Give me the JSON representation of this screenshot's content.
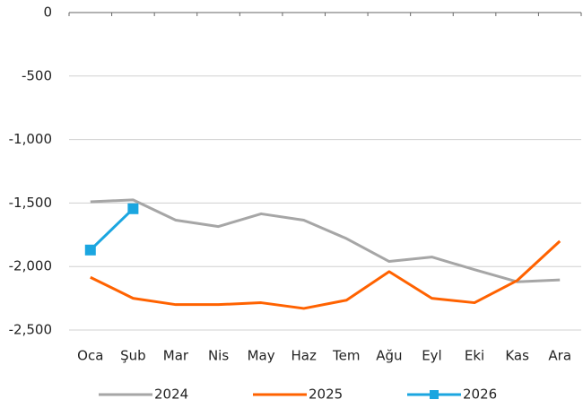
{
  "chart_data": {
    "type": "line",
    "categories": [
      "Oca",
      "Şub",
      "Mar",
      "Nis",
      "May",
      "Haz",
      "Tem",
      "Ağu",
      "Eyl",
      "Eki",
      "Kas",
      "Ara"
    ],
    "series": [
      {
        "name": "2024",
        "color": "#a6a6a6",
        "values": [
          -1490,
          -1475,
          -1635,
          -1685,
          -1585,
          -1635,
          -1780,
          -1960,
          -1925,
          -2025,
          -2120,
          -2105
        ]
      },
      {
        "name": "2025",
        "color": "#ff6200",
        "values": [
          -2085,
          -2250,
          -2300,
          -2300,
          -2285,
          -2330,
          -2265,
          -2040,
          -2250,
          -2285,
          -2110,
          -1800
        ]
      },
      {
        "name": "2026",
        "color": "#1ba6e0",
        "marker": "square",
        "values": [
          -1870,
          -1545,
          null,
          null,
          null,
          null,
          null,
          null,
          null,
          null,
          null,
          null
        ]
      }
    ],
    "ylim": [
      -2500,
      0
    ],
    "yticks": [
      0,
      -500,
      {
        "value": -1000,
        "label": "-1,000"
      },
      {
        "value": -1500,
        "label": "-1,500"
      },
      {
        "value": -2000,
        "label": "-2,000"
      },
      {
        "value": -2500,
        "label": "-2,500"
      }
    ],
    "grid": true,
    "legend": "bottom"
  }
}
